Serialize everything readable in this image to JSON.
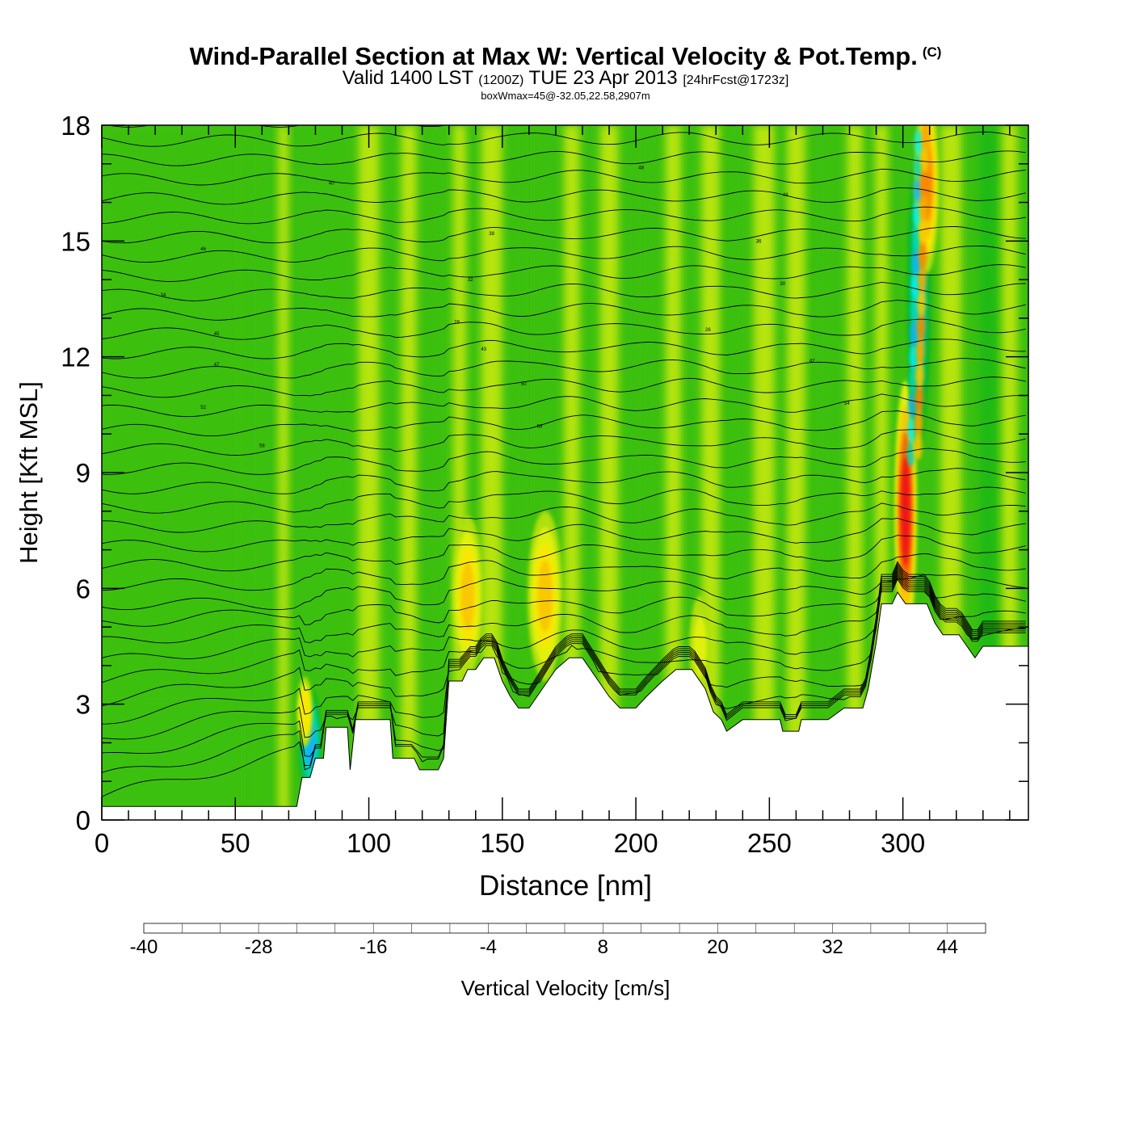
{
  "chart_data": {
    "type": "heatmap",
    "title": "Wind-Parallel Section at Max W: Vertical Velocity & Pot.Temp.",
    "title_mark": "(C)",
    "subtitle": {
      "valid_prefix": "Valid 1400 LST",
      "zulu": "(1200Z)",
      "date": "TUE 23 Apr 2013",
      "forecast": "[24hrFcst@1723z]"
    },
    "box_info": "boxWmax=45@-32.05,22.58,2907m",
    "xlabel": "Distance [nm]",
    "ylabel": "Height [Kft MSL]",
    "xlim": [
      0,
      347
    ],
    "ylim": [
      0,
      18
    ],
    "x_ticks": [
      0,
      50,
      100,
      150,
      200,
      250,
      300
    ],
    "x_tick_labels": [
      "0",
      "50",
      "100",
      "150",
      "200",
      "250",
      "300"
    ],
    "y_ticks": [
      0,
      3,
      6,
      9,
      12,
      15,
      18
    ],
    "y_tick_labels": [
      "0",
      "3",
      "6",
      "9",
      "12",
      "15",
      "18"
    ],
    "colorbar": {
      "label": "Vertical Velocity [cm/s]",
      "min": -40,
      "step": 4,
      "tick_values": [
        -40,
        -28,
        -16,
        -4,
        8,
        20,
        32,
        44
      ],
      "tick_labels": [
        "-40",
        "-28",
        "-16",
        "-4",
        "8",
        "20",
        "32",
        "44"
      ],
      "colors": [
        "#1010e8",
        "#1050f0",
        "#1888f8",
        "#10b4f8",
        "#00f0f0",
        "#00d8b8",
        "#00c878",
        "#00b84c",
        "#14b814",
        "#3cc010",
        "#78d010",
        "#b0e010",
        "#e0f010",
        "#f8e800",
        "#f8c800",
        "#f8a800",
        "#f88800",
        "#f86800",
        "#f84000",
        "#f01818",
        "#d80030",
        "#c80044"
      ]
    },
    "terrain": [
      [
        0,
        0.35
      ],
      [
        73,
        0.35
      ],
      [
        75,
        1.1
      ],
      [
        78,
        1.1
      ],
      [
        80,
        1.6
      ],
      [
        83,
        1.6
      ],
      [
        84,
        2.4
      ],
      [
        92,
        2.4
      ],
      [
        93,
        1.3
      ],
      [
        95,
        2.6
      ],
      [
        100,
        2.6
      ],
      [
        103,
        2.6
      ],
      [
        108,
        2.6
      ],
      [
        109,
        1.6
      ],
      [
        117,
        1.6
      ],
      [
        119,
        1.3
      ],
      [
        126,
        1.3
      ],
      [
        128,
        1.6
      ],
      [
        130,
        3.6
      ],
      [
        135,
        3.6
      ],
      [
        137,
        3.9
      ],
      [
        140,
        3.9
      ],
      [
        143,
        4.2
      ],
      [
        147,
        4.2
      ],
      [
        150,
        3.6
      ],
      [
        153,
        3.2
      ],
      [
        156,
        2.9
      ],
      [
        160,
        2.9
      ],
      [
        163,
        3.2
      ],
      [
        167,
        3.6
      ],
      [
        170,
        3.9
      ],
      [
        175,
        4.2
      ],
      [
        180,
        4.2
      ],
      [
        183,
        3.9
      ],
      [
        186,
        3.6
      ],
      [
        190,
        3.2
      ],
      [
        194,
        2.9
      ],
      [
        200,
        2.9
      ],
      [
        204,
        3.2
      ],
      [
        210,
        3.6
      ],
      [
        215,
        3.9
      ],
      [
        221,
        3.9
      ],
      [
        226,
        3.4
      ],
      [
        229,
        2.8
      ],
      [
        232,
        2.6
      ],
      [
        234,
        2.3
      ],
      [
        240,
        2.6
      ],
      [
        254,
        2.6
      ],
      [
        255,
        2.3
      ],
      [
        261,
        2.3
      ],
      [
        262,
        2.6
      ],
      [
        272,
        2.6
      ],
      [
        278,
        2.9
      ],
      [
        285,
        2.9
      ],
      [
        287,
        3.4
      ],
      [
        290,
        4.6
      ],
      [
        292,
        5.6
      ],
      [
        296,
        5.6
      ],
      [
        298,
        5.9
      ],
      [
        301,
        5.6
      ],
      [
        306,
        5.6
      ],
      [
        309,
        5.6
      ],
      [
        312,
        5.1
      ],
      [
        315,
        4.8
      ],
      [
        321,
        4.8
      ],
      [
        324,
        4.5
      ],
      [
        327,
        4.2
      ],
      [
        330,
        4.5
      ],
      [
        347,
        4.5
      ]
    ],
    "cells": [
      {
        "x": 78,
        "y": 2.0,
        "w": -30
      },
      {
        "x": 76,
        "y": 2.8,
        "w": 18
      },
      {
        "x": 137,
        "y": 5.8,
        "w": 20
      },
      {
        "x": 166,
        "y": 5.8,
        "w": 22
      },
      {
        "x": 224,
        "y": 4.5,
        "w": 12
      },
      {
        "x": 301,
        "y": 8.0,
        "w": 45
      },
      {
        "x": 306,
        "y": 13.5,
        "w": -22
      },
      {
        "x": 309,
        "y": 16.5,
        "w": 28
      }
    ],
    "isentrope_labels": [
      "40",
      "48",
      "44",
      "46",
      "38",
      "36",
      "34",
      "32",
      "30",
      "28",
      "26",
      "45",
      "43",
      "42",
      "47",
      "50",
      "52",
      "54",
      "56",
      "58"
    ]
  }
}
